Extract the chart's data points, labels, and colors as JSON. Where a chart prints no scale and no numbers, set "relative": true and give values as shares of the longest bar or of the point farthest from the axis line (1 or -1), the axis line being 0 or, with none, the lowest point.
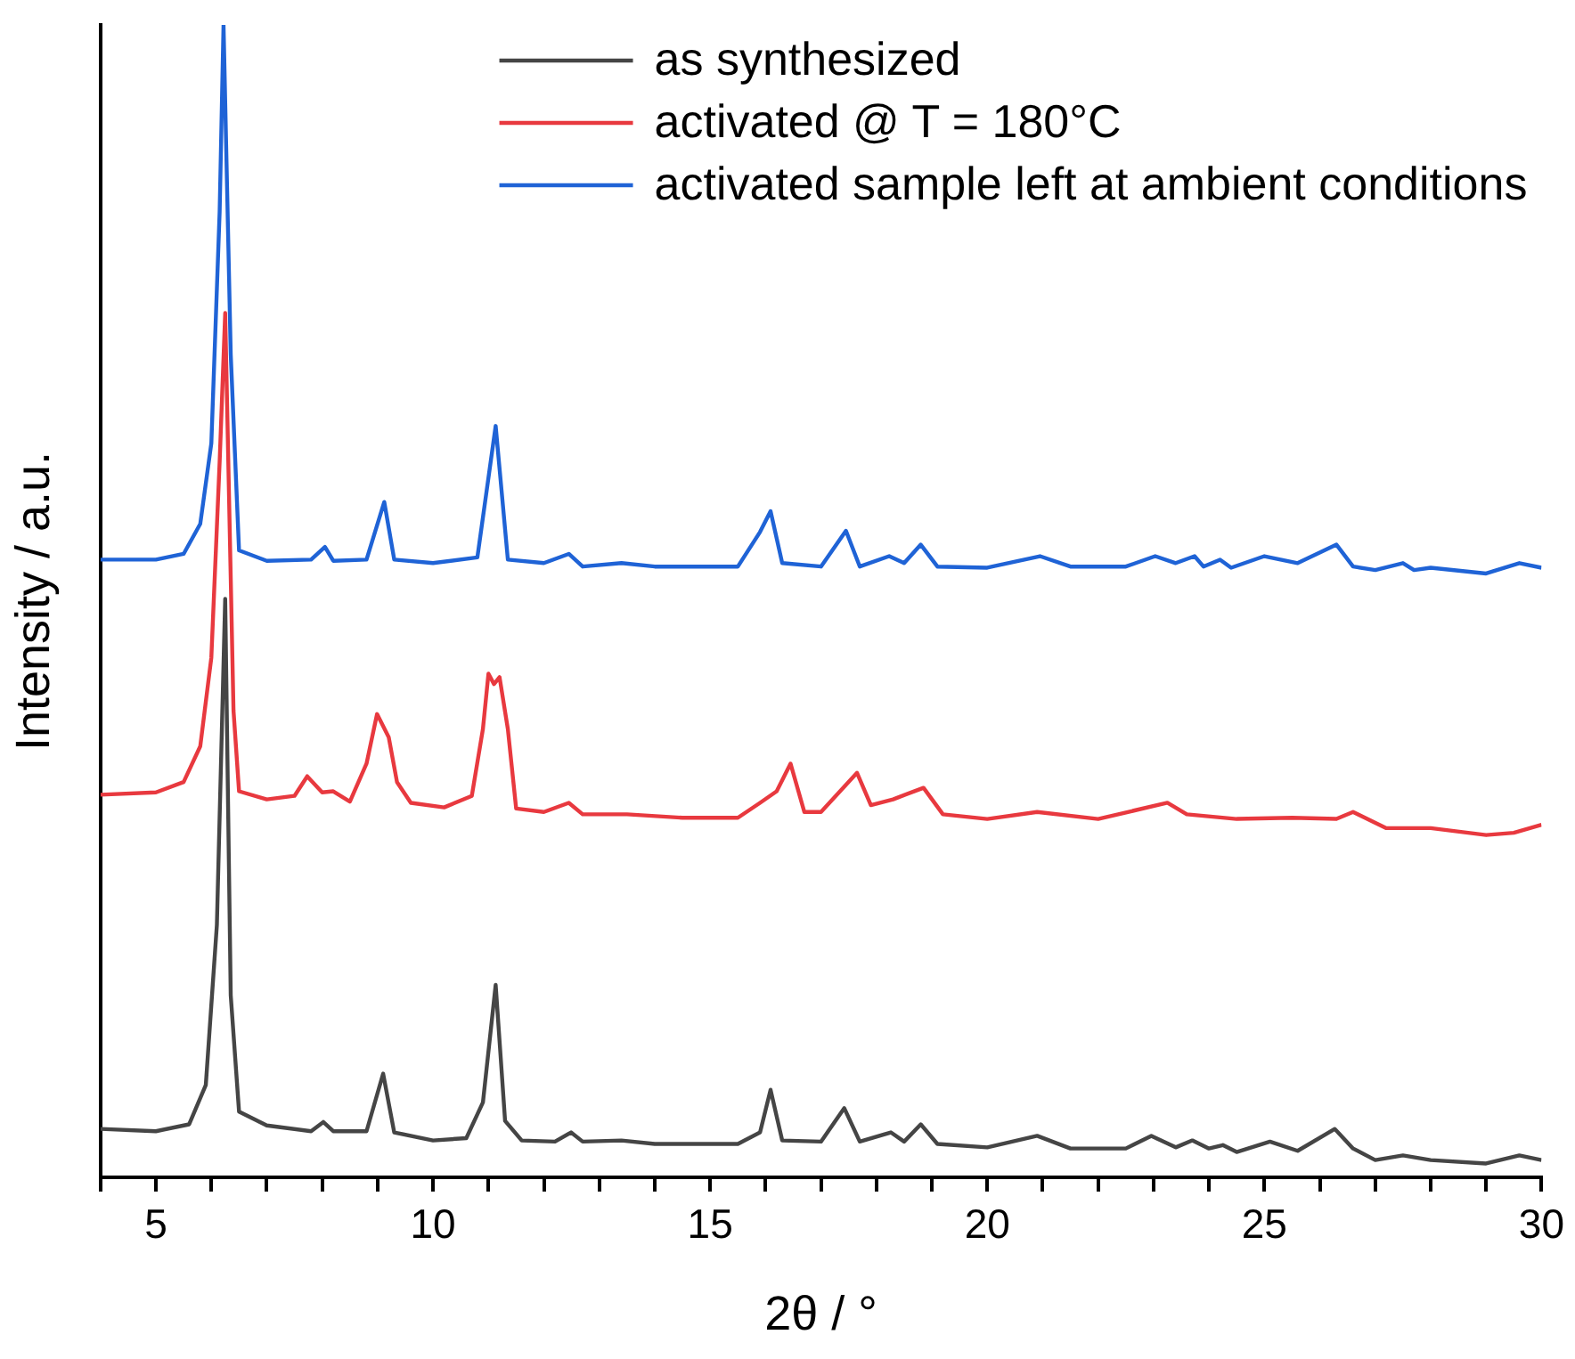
{
  "chart_data": {
    "type": "line",
    "relative": true,
    "xlabel": "2θ / °",
    "ylabel": "Intensity / a.u.",
    "xlim": [
      4,
      30
    ],
    "xticks": [
      {
        "value": 4,
        "label": null
      },
      5,
      {
        "value": 6,
        "label": null
      },
      {
        "value": 7,
        "label": null
      },
      {
        "value": 8,
        "label": null
      },
      {
        "value": 9,
        "label": null
      },
      10,
      {
        "value": 11,
        "label": null
      },
      {
        "value": 12,
        "label": null
      },
      {
        "value": 13,
        "label": null
      },
      {
        "value": 14,
        "label": null
      },
      15,
      {
        "value": 16,
        "label": null
      },
      {
        "value": 17,
        "label": null
      },
      {
        "value": 18,
        "label": null
      },
      {
        "value": 19,
        "label": null
      },
      20,
      {
        "value": 21,
        "label": null
      },
      {
        "value": 22,
        "label": null
      },
      {
        "value": 23,
        "label": null
      },
      {
        "value": 24,
        "label": null
      },
      25,
      {
        "value": 26,
        "label": null
      },
      {
        "value": 27,
        "label": null
      },
      {
        "value": 28,
        "label": null
      },
      {
        "value": 29,
        "label": null
      },
      30
    ],
    "tick_labels": "x",
    "grid": false,
    "legend": "top right",
    "marker": "none",
    "line_style": "solid",
    "series": [
      {
        "name": "as synthesized",
        "color": "#454545",
        "x": [
          4,
          5,
          5.6,
          5.9,
          6.1,
          6.25,
          6.35,
          6.5,
          7,
          7.8,
          8.02,
          8.2,
          8.8,
          9.1,
          9.3,
          10,
          10.6,
          10.9,
          11.13,
          11.3,
          11.6,
          12.2,
          12.49,
          12.7,
          13.4,
          14,
          15.5,
          15.9,
          16.09,
          16.3,
          17,
          17.42,
          17.7,
          18.26,
          18.5,
          18.8,
          19.1,
          20,
          20.9,
          21.5,
          22.5,
          22.96,
          23.4,
          23.7,
          24,
          24.25,
          24.5,
          25.1,
          25.6,
          26.27,
          26.6,
          27,
          27.5,
          28,
          29,
          29.6,
          30
        ],
        "values": [
          0.042,
          0.04,
          0.046,
          0.08,
          0.219,
          0.502,
          0.158,
          0.057,
          0.045,
          0.04,
          0.048,
          0.04,
          0.04,
          0.09,
          0.039,
          0.032,
          0.034,
          0.065,
          0.167,
          0.049,
          0.032,
          0.031,
          0.039,
          0.031,
          0.032,
          0.029,
          0.029,
          0.039,
          0.076,
          0.032,
          0.031,
          0.06,
          0.031,
          0.039,
          0.031,
          0.046,
          0.029,
          0.026,
          0.036,
          0.025,
          0.025,
          0.036,
          0.026,
          0.032,
          0.025,
          0.028,
          0.022,
          0.031,
          0.023,
          0.042,
          0.025,
          0.015,
          0.019,
          0.015,
          0.012,
          0.019,
          0.015
        ]
      },
      {
        "name": "activated @ T = 180°C",
        "color": "#e8393f",
        "x": [
          4,
          5,
          5.5,
          5.8,
          6,
          6.15,
          6.25,
          6.4,
          6.5,
          7,
          7.5,
          7.73,
          8,
          8.2,
          8.5,
          8.8,
          8.99,
          9.2,
          9.35,
          9.6,
          10.2,
          10.7,
          10.9,
          11,
          11.1,
          11.2,
          11.35,
          11.5,
          12,
          12.45,
          12.7,
          13.5,
          14.5,
          15.5,
          15.9,
          16.2,
          16.45,
          16.7,
          17,
          17.65,
          17.9,
          18.3,
          18.85,
          19.2,
          20,
          20.9,
          22,
          23.25,
          23.6,
          24.5,
          25.5,
          26.3,
          26.6,
          27.2,
          28,
          29,
          29.5,
          30
        ],
        "values": [
          0.332,
          0.334,
          0.343,
          0.374,
          0.451,
          0.621,
          0.75,
          0.405,
          0.335,
          0.328,
          0.331,
          0.348,
          0.334,
          0.335,
          0.326,
          0.359,
          0.402,
          0.382,
          0.343,
          0.325,
          0.321,
          0.331,
          0.389,
          0.437,
          0.428,
          0.434,
          0.389,
          0.32,
          0.317,
          0.325,
          0.315,
          0.315,
          0.312,
          0.312,
          0.325,
          0.335,
          0.359,
          0.317,
          0.317,
          0.351,
          0.323,
          0.328,
          0.338,
          0.315,
          0.311,
          0.317,
          0.311,
          0.325,
          0.315,
          0.311,
          0.312,
          0.311,
          0.317,
          0.303,
          0.303,
          0.297,
          0.299,
          0.306
        ]
      },
      {
        "name": "activated sample left at ambient conditions",
        "color": "#1f63d6",
        "x": [
          4,
          5,
          5.5,
          5.8,
          6,
          6.15,
          6.22,
          6.35,
          6.5,
          7,
          7.8,
          8.05,
          8.2,
          8.8,
          9.12,
          9.3,
          10,
          10.8,
          11.13,
          11.35,
          12,
          12.45,
          12.7,
          13.4,
          14,
          15.5,
          15.9,
          16.09,
          16.3,
          17,
          17.45,
          17.7,
          18.23,
          18.5,
          18.8,
          19.1,
          20,
          20.95,
          21.5,
          22.5,
          23.03,
          23.4,
          23.74,
          23.9,
          24.2,
          24.4,
          25,
          25.6,
          26.3,
          26.6,
          27,
          27.5,
          27.7,
          28,
          29,
          29.6,
          30
        ],
        "values": [
          0.536,
          0.536,
          0.541,
          0.567,
          0.637,
          0.838,
          1,
          0.714,
          0.544,
          0.535,
          0.536,
          0.547,
          0.535,
          0.536,
          0.586,
          0.536,
          0.533,
          0.538,
          0.652,
          0.536,
          0.533,
          0.541,
          0.53,
          0.533,
          0.53,
          0.53,
          0.56,
          0.578,
          0.533,
          0.53,
          0.561,
          0.53,
          0.539,
          0.533,
          0.549,
          0.53,
          0.529,
          0.539,
          0.53,
          0.53,
          0.539,
          0.533,
          0.539,
          0.53,
          0.536,
          0.529,
          0.539,
          0.533,
          0.549,
          0.53,
          0.527,
          0.533,
          0.527,
          0.529,
          0.524,
          0.533,
          0.529
        ]
      }
    ]
  }
}
